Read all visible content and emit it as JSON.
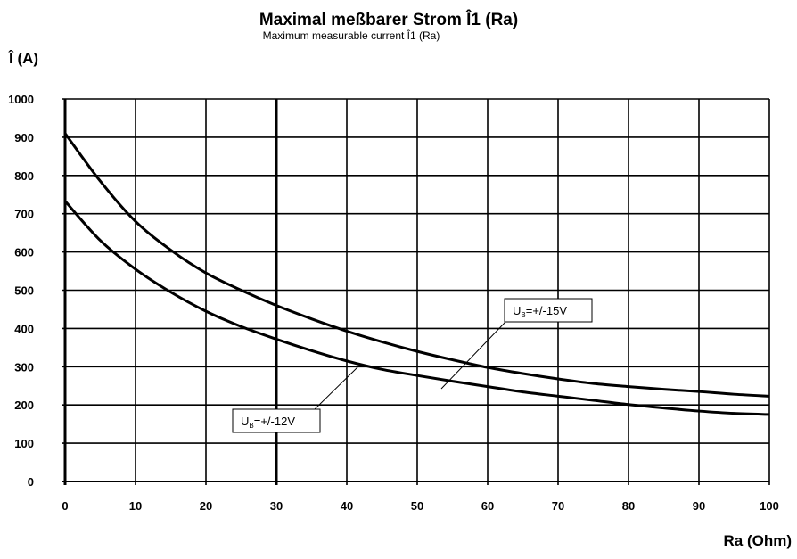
{
  "chart_data": {
    "type": "line",
    "title": "Maximal  meßbarer Strom Î1  (Ra)",
    "subtitle": "Maximum measurable current Î1 (Ra)",
    "ylabel": "Î  (A)",
    "xlabel": "Ra  (Ohm)",
    "xlim": [
      0,
      100
    ],
    "ylim": [
      0,
      1000
    ],
    "x_ticks": [
      "0",
      "10",
      "20",
      "30",
      "40",
      "50",
      "60",
      "70",
      "80",
      "90",
      "100"
    ],
    "y_ticks": [
      "0",
      "100",
      "200",
      "300",
      "400",
      "500",
      "600",
      "700",
      "800",
      "900",
      "1000"
    ],
    "grid": true,
    "x": [
      0,
      5,
      10,
      15,
      20,
      25,
      30,
      35,
      40,
      45,
      50,
      55,
      60,
      65,
      70,
      75,
      80,
      85,
      90,
      95,
      100
    ],
    "series": [
      {
        "name": "UB=+/-15V",
        "label_main": "U",
        "label_sub": "B",
        "label_rest": "=+/-15V",
        "values": [
          910,
          785,
          680,
          605,
          545,
          500,
          460,
          425,
          393,
          365,
          340,
          318,
          298,
          282,
          268,
          256,
          248,
          241,
          235,
          228,
          223
        ]
      },
      {
        "name": "UB=+/-12V",
        "label_main": "U",
        "label_sub": "B",
        "label_rest": "=+/-12V",
        "values": [
          733,
          630,
          555,
          495,
          445,
          405,
          372,
          342,
          315,
          293,
          277,
          262,
          248,
          234,
          223,
          212,
          201,
          192,
          184,
          178,
          175
        ]
      }
    ]
  }
}
